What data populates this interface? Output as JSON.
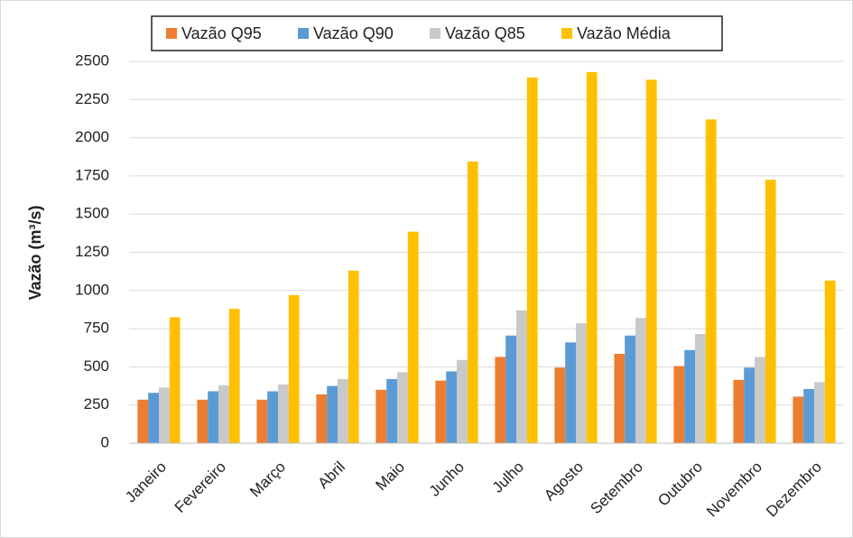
{
  "chart_data": {
    "type": "bar",
    "y_label": "Vazão (m³/s)",
    "categories": [
      "Janeiro",
      "Fevereiro",
      "Março",
      "Abril",
      "Maio",
      "Junho",
      "Julho",
      "Agosto",
      "Setembro",
      "Outubro",
      "Novembro",
      "Dezembro"
    ],
    "series": [
      {
        "name": "Vazão Q95",
        "color": "#ed7d31",
        "values": [
          285,
          285,
          285,
          320,
          350,
          410,
          565,
          495,
          585,
          505,
          415,
          305
        ]
      },
      {
        "name": "Vazão Q90",
        "color": "#5b9bd5",
        "values": [
          330,
          340,
          340,
          375,
          420,
          470,
          705,
          660,
          705,
          610,
          495,
          355
        ]
      },
      {
        "name": "Vazão Q85",
        "color": "#c9c9c9",
        "values": [
          365,
          380,
          385,
          420,
          465,
          545,
          870,
          785,
          820,
          715,
          565,
          400
        ]
      },
      {
        "name": "Vazão Média",
        "color": "#ffc000",
        "values": [
          825,
          880,
          970,
          1130,
          1385,
          1845,
          2395,
          2430,
          2380,
          2120,
          1725,
          1065
        ]
      }
    ],
    "ylim": [
      0,
      2500
    ],
    "yticks": [
      0,
      250,
      500,
      750,
      1000,
      1250,
      1500,
      1750,
      2000,
      2250,
      2500
    ],
    "grid": true,
    "legend": "top"
  }
}
